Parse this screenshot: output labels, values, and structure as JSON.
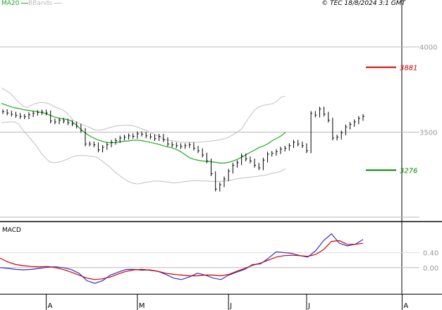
{
  "chart_data": [
    {
      "type": "candlestick",
      "title": "",
      "legend": [
        {
          "name": "MA20",
          "color": "#22aa22"
        },
        {
          "name": "BBands",
          "color": "#bdbdbd"
        }
      ],
      "stamp": "© TEC 18/8/2024 3:1 GMT",
      "y_ticks": [
        "4000",
        "3500"
      ],
      "ylim": [
        2980,
        4210
      ],
      "price_labels": [
        {
          "text": "3881",
          "value": 3881,
          "color": "#cc0000"
        },
        {
          "text": "3276",
          "value": 3276,
          "color": "#008800"
        }
      ],
      "x_ticks": [
        {
          "label": "A",
          "index": 10
        },
        {
          "label": "M",
          "index": 31
        },
        {
          "label": "J",
          "index": 52
        },
        {
          "label": "J",
          "index": 70
        },
        {
          "label": "A",
          "index": 92
        }
      ],
      "closes": [
        3620,
        3612,
        3605,
        3598,
        3592,
        3590,
        3602,
        3610,
        3615,
        3618,
        3612,
        3565,
        3560,
        3570,
        3565,
        3555,
        3548,
        3535,
        3510,
        3430,
        3430,
        3425,
        3395,
        3410,
        3425,
        3440,
        3450,
        3465,
        3470,
        3478,
        3475,
        3490,
        3488,
        3478,
        3472,
        3462,
        3475,
        3455,
        3430,
        3425,
        3420,
        3415,
        3420,
        3425,
        3405,
        3390,
        3365,
        3330,
        3255,
        3165,
        3190,
        3225,
        3270,
        3305,
        3320,
        3360,
        3342,
        3330,
        3305,
        3290,
        3335,
        3370,
        3375,
        3385,
        3400,
        3405,
        3420,
        3440,
        3430,
        3420,
        3390,
        3610,
        3600,
        3635,
        3605,
        3570,
        3465,
        3470,
        3495,
        3530,
        3545,
        3560,
        3580,
        3592
      ],
      "ma20": [
        3668,
        3660,
        3650,
        3643,
        3638,
        3632,
        3628,
        3624,
        3621,
        3616,
        3610,
        3600,
        3590,
        3582,
        3578,
        3574,
        3565,
        3545,
        3520,
        3498,
        3480,
        3466,
        3455,
        3446,
        3440,
        3437,
        3438,
        3442,
        3446,
        3448,
        3452,
        3453,
        3450,
        3445,
        3440,
        3434,
        3428,
        3420,
        3413,
        3408,
        3398,
        3385,
        3368,
        3350,
        3340,
        3334,
        3330,
        3328,
        3326,
        3322,
        3318,
        3318,
        3322,
        3330,
        3340,
        3352,
        3368,
        3382,
        3395,
        3410,
        3418,
        3432,
        3450,
        3463,
        3478,
        3498
      ],
      "ma20_start_index": 0,
      "bb_upper": [
        3760,
        3745,
        3728,
        3700,
        3674,
        3650,
        3645,
        3660,
        3670,
        3674,
        3672,
        3665,
        3650,
        3640,
        3630,
        3612,
        3580,
        3560,
        3548,
        3540,
        3530,
        3516,
        3510,
        3512,
        3520,
        3528,
        3535,
        3538,
        3540,
        3540,
        3538,
        3530,
        3520,
        3510,
        3500,
        3488,
        3475,
        3460,
        3452,
        3450,
        3445,
        3440,
        3440,
        3440,
        3440,
        3440,
        3442,
        3445,
        3448,
        3450,
        3455,
        3460,
        3470,
        3485,
        3500,
        3520,
        3560,
        3600,
        3632,
        3648,
        3658,
        3662,
        3666,
        3680,
        3705,
        3710
      ],
      "bb_lower": [
        3555,
        3558,
        3560,
        3560,
        3545,
        3510,
        3480,
        3450,
        3420,
        3380,
        3350,
        3326,
        3320,
        3322,
        3330,
        3340,
        3352,
        3360,
        3362,
        3362,
        3360,
        3356,
        3350,
        3330,
        3310,
        3290,
        3265,
        3245,
        3225,
        3210,
        3200,
        3195,
        3198,
        3205,
        3208,
        3212,
        3212,
        3210,
        3206,
        3202,
        3202,
        3205,
        3210,
        3212,
        3214,
        3214,
        3213,
        3212,
        3211,
        3210,
        3210,
        3212,
        3214,
        3220,
        3225,
        3230,
        3232,
        3235,
        3238,
        3242,
        3245,
        3250,
        3258,
        3262,
        3270,
        3285
      ]
    },
    {
      "type": "line",
      "title": "MACD",
      "y_ticks": [
        "0.40",
        "0.00"
      ],
      "series": [
        {
          "color": "#3333cc",
          "values": [
            0.0,
            -0.02,
            -0.05,
            -0.06,
            -0.05,
            -0.02,
            0.01,
            0.02,
            0.0,
            -0.05,
            -0.15,
            -0.35,
            -0.42,
            -0.35,
            -0.2,
            -0.12,
            -0.05,
            -0.05,
            -0.07,
            -0.06,
            -0.1,
            -0.18,
            -0.28,
            -0.32,
            -0.25,
            -0.15,
            -0.2,
            -0.28,
            -0.32,
            -0.2,
            -0.12,
            -0.05,
            0.08,
            0.1,
            0.25,
            0.42,
            0.4,
            0.38,
            0.32,
            0.28,
            0.45,
            0.72,
            0.9,
            0.65,
            0.58,
            0.62,
            0.75
          ]
        },
        {
          "color": "#cc0000",
          "values": [
            0.25,
            0.15,
            0.08,
            0.05,
            0.03,
            0.02,
            0.03,
            0.0,
            -0.05,
            -0.12,
            -0.2,
            -0.28,
            -0.32,
            -0.3,
            -0.25,
            -0.17,
            -0.1,
            -0.06,
            -0.05,
            -0.07,
            -0.1,
            -0.15,
            -0.18,
            -0.2,
            -0.22,
            -0.22,
            -0.2,
            -0.2,
            -0.22,
            -0.18,
            -0.1,
            -0.02,
            0.06,
            0.12,
            0.2,
            0.28,
            0.32,
            0.33,
            0.32,
            0.3,
            0.35,
            0.48,
            0.7,
            0.72,
            0.62,
            0.62,
            0.65
          ]
        }
      ],
      "ylim": [
        -0.7,
        1.2
      ]
    }
  ]
}
